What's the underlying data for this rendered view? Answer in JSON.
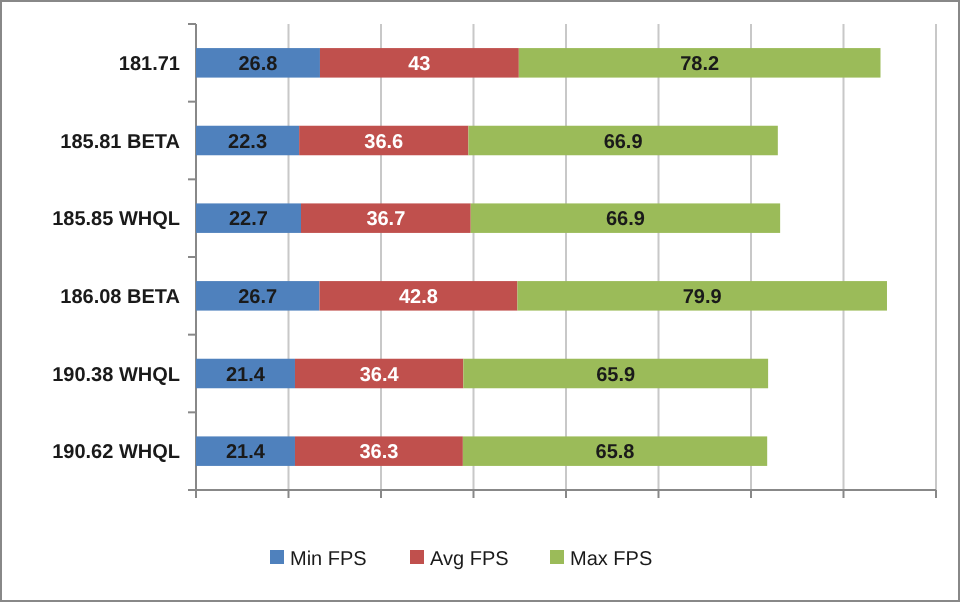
{
  "chart_data": {
    "type": "bar",
    "orientation": "horizontal",
    "stacked": true,
    "data_labels": true,
    "grid": "x",
    "legend": "bottom",
    "tick_labels": "y",
    "categories": [
      "181.71",
      "185.81 BETA",
      "185.85 WHQL",
      "186.08 BETA",
      "190.38 WHQL",
      "190.62 WHQL"
    ],
    "xlim": [
      0,
      160
    ],
    "xticks": [
      {
        "value": 0,
        "label": null
      },
      {
        "value": 20,
        "label": null
      },
      {
        "value": 40,
        "label": null
      },
      {
        "value": 60,
        "label": null
      },
      {
        "value": 80,
        "label": null
      },
      {
        "value": 100,
        "label": null
      },
      {
        "value": 120,
        "label": null
      },
      {
        "value": 140,
        "label": null
      },
      {
        "value": 160,
        "label": null
      }
    ],
    "series": [
      {
        "name": "Min FPS",
        "color": "#4f81bd",
        "values": [
          26.8,
          22.3,
          22.7,
          26.7,
          21.4,
          21.4
        ]
      },
      {
        "name": "Avg FPS",
        "color": "#c0504d",
        "values": [
          43,
          36.6,
          36.7,
          42.8,
          36.4,
          36.3
        ]
      },
      {
        "name": "Max FPS",
        "color": "#9bbb59",
        "values": [
          78.2,
          66.9,
          66.9,
          79.9,
          65.9,
          65.8
        ]
      }
    ]
  }
}
